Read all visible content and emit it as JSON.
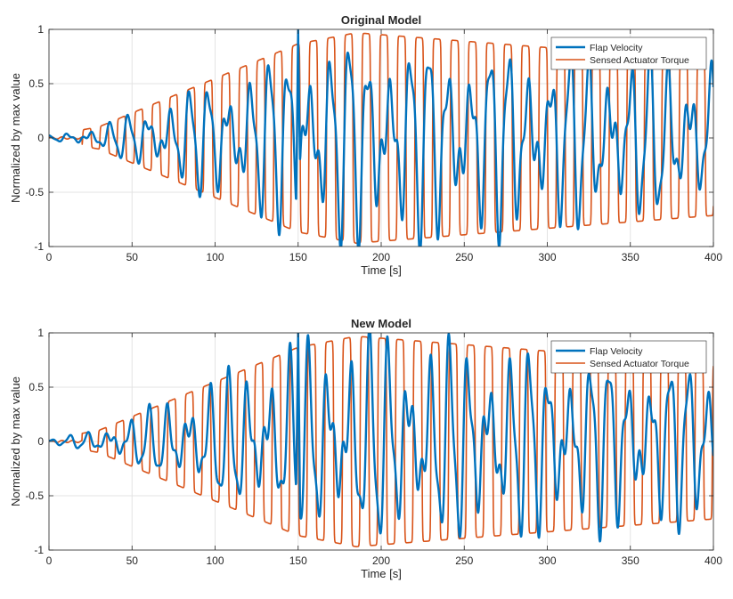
{
  "chart_data": [
    {
      "type": "line",
      "title": "Original Model",
      "xlabel": "Time [s]",
      "ylabel": "Normalized by max value",
      "xlim": [
        0,
        400
      ],
      "ylim": [
        -1,
        1
      ],
      "xticks": [
        0,
        50,
        100,
        150,
        200,
        250,
        300,
        350,
        400
      ],
      "yticks": [
        -1,
        -0.5,
        0,
        0.5,
        1
      ],
      "grid": true,
      "legend_position": "top-right",
      "series": [
        {
          "name": "Flap Velocity",
          "color": "#0072BD"
        },
        {
          "name": "Sensed Actuator Torque",
          "color": "#D95319"
        }
      ]
    },
    {
      "type": "line",
      "title": "New Model",
      "xlabel": "Time [s]",
      "ylabel": "Normalized by max value",
      "xlim": [
        0,
        400
      ],
      "ylim": [
        -1,
        1
      ],
      "xticks": [
        0,
        50,
        100,
        150,
        200,
        250,
        300,
        350,
        400
      ],
      "yticks": [
        -1,
        -0.5,
        0,
        0.5,
        1
      ],
      "grid": true,
      "legend_position": "top-right",
      "series": [
        {
          "name": "Flap Velocity",
          "color": "#0072BD"
        },
        {
          "name": "Sensed Actuator Torque",
          "color": "#D95319"
        }
      ]
    }
  ]
}
